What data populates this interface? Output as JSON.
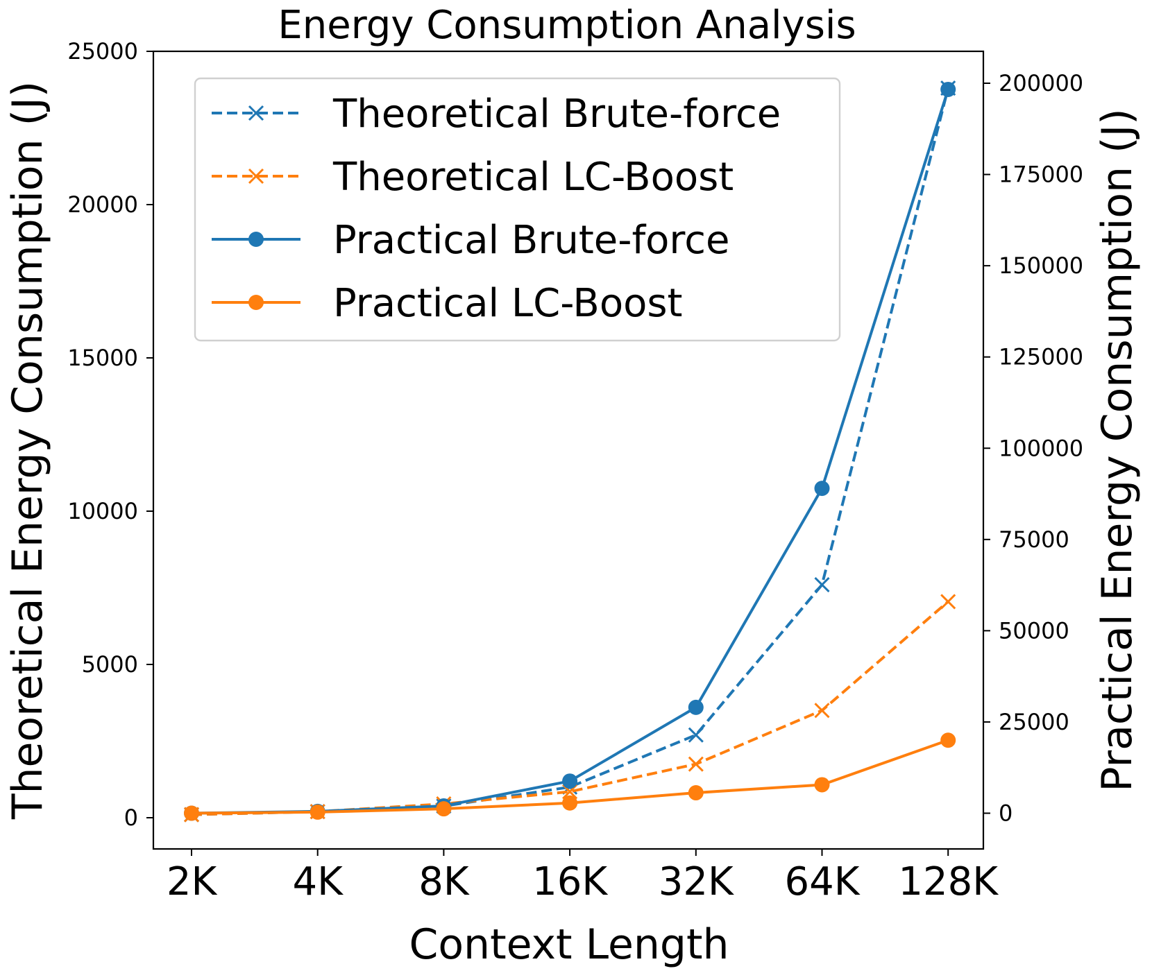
{
  "chart_data": {
    "type": "line",
    "title": "Energy Consumption Analysis",
    "xlabel": "Context Length",
    "ylabel_left": "Theoretical Energy Consumption (J)",
    "ylabel_right": "Practical Energy Consumption (J)",
    "categories": [
      "2K",
      "4K",
      "8K",
      "16K",
      "32K",
      "64K",
      "128K"
    ],
    "ylim_left": [
      -1000,
      25000
    ],
    "ylim_right": [
      -8300,
      208000
    ],
    "yticks_left": [
      0,
      5000,
      10000,
      15000,
      20000,
      25000
    ],
    "yticks_right": [
      0,
      25000,
      50000,
      75000,
      100000,
      125000,
      150000,
      175000,
      200000
    ],
    "grid": false,
    "legend_position": "top-left",
    "series": [
      {
        "name": "Theoretical Brute-force",
        "axis": "left",
        "style": "dashed",
        "marker": "x",
        "color": "#1f77b4",
        "values": [
          100,
          200,
          380,
          1000,
          2700,
          7600,
          23800
        ]
      },
      {
        "name": "Theoretical LC-Boost",
        "axis": "left",
        "style": "dashed",
        "marker": "x",
        "color": "#ff7f0e",
        "values": [
          100,
          200,
          450,
          850,
          1750,
          3500,
          7050
        ]
      },
      {
        "name": "Practical Brute-force",
        "axis": "right",
        "style": "solid",
        "marker": "o",
        "color": "#1f77b4",
        "values": [
          0,
          500,
          2000,
          8800,
          29000,
          89000,
          198300
        ]
      },
      {
        "name": "Practical LC-Boost",
        "axis": "right",
        "style": "solid",
        "marker": "o",
        "color": "#ff7f0e",
        "values": [
          0,
          300,
          1200,
          2800,
          5600,
          7800,
          20000
        ]
      }
    ]
  }
}
